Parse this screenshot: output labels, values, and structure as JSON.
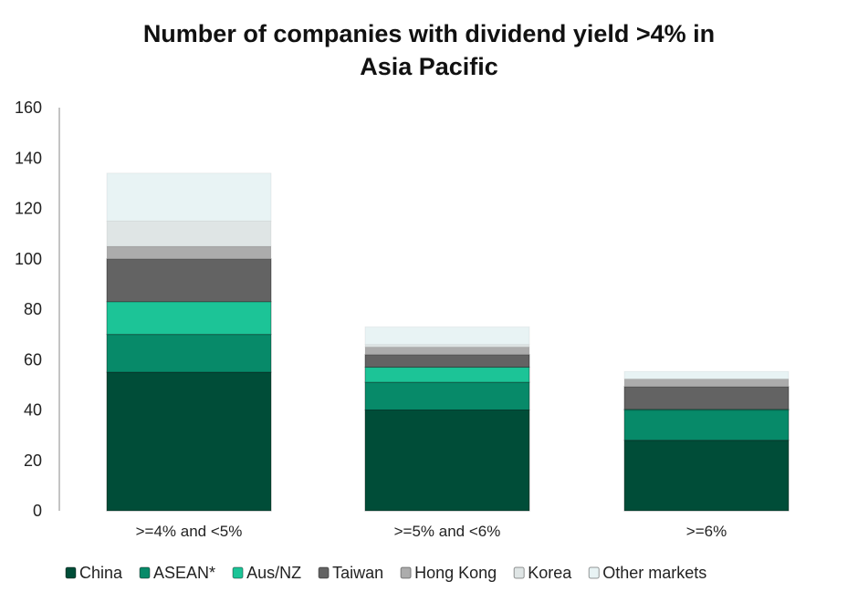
{
  "chart_data": {
    "type": "bar",
    "stacked": true,
    "title": "Number of companies with dividend yield >4% in Asia Pacific",
    "title_lines": [
      "Number of companies with dividend yield >4% in",
      "Asia Pacific"
    ],
    "xlabel": "",
    "ylabel": "",
    "ylim": [
      0,
      160
    ],
    "yticks": [
      0,
      20,
      40,
      60,
      80,
      100,
      120,
      140,
      160
    ],
    "grid": false,
    "legend_position": "bottom",
    "categories": [
      ">=4% and <5%",
      ">=5% and <6%",
      ">=6%"
    ],
    "series": [
      {
        "name": "China",
        "color": "#004d38",
        "values": [
          55,
          40,
          28
        ]
      },
      {
        "name": "ASEAN*",
        "color": "#078a69",
        "values": [
          15,
          11,
          12
        ]
      },
      {
        "name": "Aus/NZ",
        "color": "#1cc497",
        "values": [
          13,
          6,
          0.3
        ]
      },
      {
        "name": "Taiwan",
        "color": "#636363",
        "values": [
          17,
          5,
          9
        ]
      },
      {
        "name": "Hong Kong",
        "color": "#acacac",
        "values": [
          5,
          3,
          3
        ]
      },
      {
        "name": "Korea",
        "color": "#dfe5e5",
        "values": [
          10,
          1,
          0
        ]
      },
      {
        "name": "Other markets",
        "color": "#e8f3f4",
        "values": [
          19,
          7,
          3
        ]
      }
    ]
  }
}
